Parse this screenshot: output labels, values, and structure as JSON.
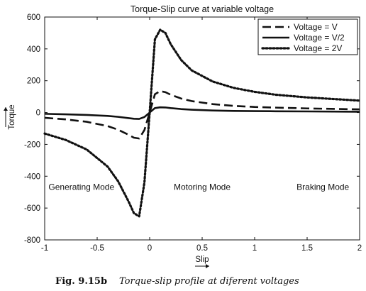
{
  "chart_data": {
    "type": "line",
    "title": "Torque-Slip curve at variable voltage",
    "xlabel": "Slip",
    "ylabel": "Torque",
    "xlim": [
      -1,
      2
    ],
    "ylim": [
      -800,
      600
    ],
    "x_ticks": [
      -1,
      -0.5,
      0,
      0.5,
      1,
      1.5,
      2
    ],
    "x_tick_labels": [
      "-1",
      "-0.5",
      "0",
      "0.5",
      "1",
      "1.5",
      "2"
    ],
    "y_ticks": [
      600,
      400,
      200,
      0,
      -200,
      -400,
      -600,
      -800
    ],
    "y_tick_labels": [
      "600",
      "400",
      "200",
      "0",
      "-200",
      "-400",
      "-600",
      "-800"
    ],
    "grid": false,
    "legend_position": "top-right",
    "series": [
      {
        "name": "Voltage = V",
        "style": "dashed",
        "color": "#111111",
        "x": [
          -1,
          -0.8,
          -0.6,
          -0.4,
          -0.3,
          -0.2,
          -0.15,
          -0.1,
          -0.05,
          0,
          0.05,
          0.1,
          0.15,
          0.2,
          0.3,
          0.4,
          0.6,
          0.8,
          1,
          1.2,
          1.5,
          2
        ],
        "y": [
          -33,
          -43,
          -58,
          -85,
          -108,
          -140,
          -158,
          -163,
          -110,
          0,
          115,
          135,
          128,
          112,
          88,
          72,
          53,
          42,
          35,
          31,
          26,
          20
        ]
      },
      {
        "name": "Voltage = V/2",
        "style": "solid",
        "color": "#111111",
        "x": [
          -1,
          -0.8,
          -0.6,
          -0.4,
          -0.3,
          -0.2,
          -0.15,
          -0.1,
          -0.05,
          0,
          0.05,
          0.1,
          0.15,
          0.2,
          0.3,
          0.4,
          0.6,
          0.8,
          1,
          1.2,
          1.5,
          2
        ],
        "y": [
          -8,
          -11,
          -15,
          -21,
          -27,
          -35,
          -39,
          -40,
          -28,
          0,
          28,
          33,
          32,
          28,
          22,
          18,
          13,
          10,
          9,
          8,
          7,
          5
        ]
      },
      {
        "name": "Voltage = 2V",
        "style": "dotted",
        "color": "#111111",
        "x": [
          -1,
          -0.8,
          -0.6,
          -0.4,
          -0.3,
          -0.2,
          -0.15,
          -0.1,
          -0.05,
          0,
          0.05,
          0.1,
          0.15,
          0.2,
          0.3,
          0.4,
          0.6,
          0.8,
          1,
          1.2,
          1.5,
          2
        ],
        "y": [
          -132,
          -172,
          -232,
          -340,
          -432,
          -560,
          -632,
          -652,
          -440,
          0,
          460,
          520,
          500,
          430,
          330,
          265,
          195,
          155,
          130,
          112,
          95,
          75
        ]
      }
    ],
    "annotations": [
      {
        "text": "Generating Mode",
        "x": -0.65,
        "y": -485
      },
      {
        "text": "Motoring Mode",
        "x": 0.5,
        "y": -485
      },
      {
        "text": "Braking Mode",
        "x": 1.65,
        "y": -485
      }
    ]
  },
  "caption": {
    "label": "Fig. 9.15b",
    "text": "Torque-slip profile at diferent voltages"
  }
}
